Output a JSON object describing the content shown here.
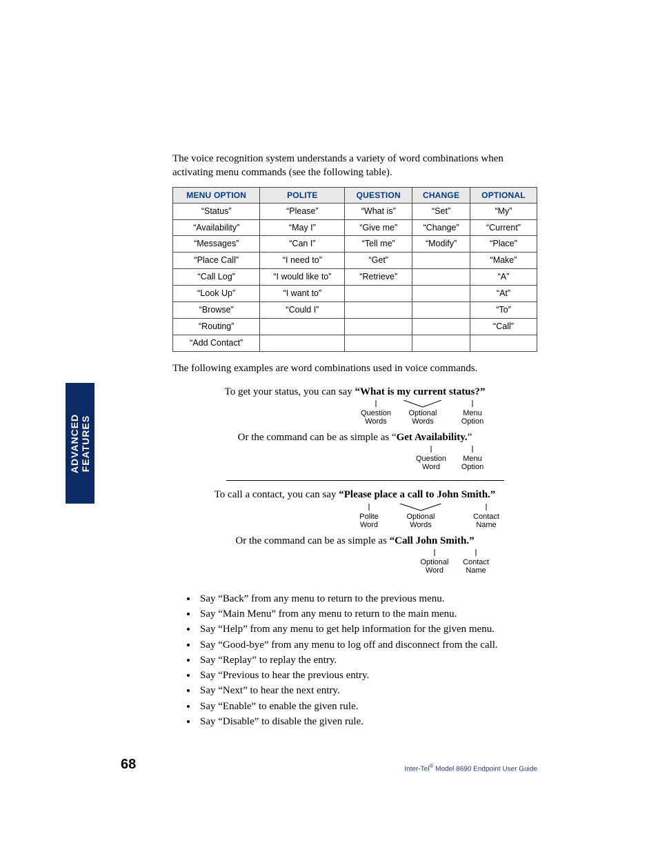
{
  "intro": "The voice recognition system understands a variety of word combinations when activating menu commands (see the following table).",
  "table": {
    "headers": [
      "MENU OPTION",
      "POLITE",
      "QUESTION",
      "CHANGE",
      "OPTIONAL"
    ],
    "rows": [
      [
        "“Status”",
        "“Please”",
        "“What is”",
        "“Set”",
        "“My”"
      ],
      [
        "“Availability”",
        "“May I”",
        "“Give me”",
        "“Change”",
        "“Current”"
      ],
      [
        "“Messages”",
        "“Can I”",
        "“Tell me”",
        "“Modify”",
        "“Place”"
      ],
      [
        "“Place Call”",
        "“I need to”",
        "“Get”",
        "",
        "“Make”"
      ],
      [
        "“Call Log”",
        "“I would like to”",
        "“Retrieve”",
        "",
        "“A”"
      ],
      [
        "“Look Up”",
        "“I want to”",
        "",
        "",
        "“At”"
      ],
      [
        "“Browse”",
        "“Could I”",
        "",
        "",
        "“To”"
      ],
      [
        "“Routing”",
        "",
        "",
        "",
        "“Call”"
      ],
      [
        "“Add Contact”",
        "",
        "",
        "",
        ""
      ]
    ]
  },
  "after_table": "The following examples are word combinations used in voice commands.",
  "examples": {
    "e1_prefix": "To get your status, you can say ",
    "e1_bold": "“What is my current status?”",
    "e1_ann": {
      "a1_l1": "Question",
      "a1_l2": "Words",
      "a2_l1": "Optional",
      "a2_l2": "Words",
      "a3_l1": "Menu",
      "a3_l2": "Option"
    },
    "e2_prefix": "Or the command can be as simple as “",
    "e2_bold": "Get Availability.",
    "e2_suffix": "”",
    "e2_ann": {
      "a1_l1": "Question",
      "a1_l2": "Word",
      "a2_l1": "Menu",
      "a2_l2": "Option"
    },
    "e3_prefix": "To call a contact, you can say ",
    "e3_bold": "“Please place a call to John Smith.”",
    "e3_ann": {
      "a1_l1": "Polite",
      "a1_l2": "Word",
      "a2_l1": "Optional",
      "a2_l2": "Words",
      "a3_l1": "Contact",
      "a3_l2": "Name"
    },
    "e4_prefix": "Or the command can be as simple as ",
    "e4_bold": "“Call John Smith.”",
    "e4_ann": {
      "a1_l1": "Optional",
      "a1_l2": "Word",
      "a2_l1": "Contact",
      "a2_l2": "Name"
    }
  },
  "say_list": [
    "Say “Back” from any menu to return to the previous menu.",
    "Say “Main Menu” from any menu to return to the main menu.",
    "Say “Help” from any menu to get help information for the given menu.",
    "Say “Good-bye” from any menu to log off and disconnect from the call.",
    "Say “Replay” to replay the entry.",
    "Say “Previous to hear the previous entry.",
    "Say “Next” to hear the next entry.",
    "Say “Enable” to enable the given rule.",
    "Say “Disable” to disable the given rule."
  ],
  "sidetab_line1": "ADVANCED",
  "sidetab_line2": "FEATURES",
  "page_number": "68",
  "footer_brand_pre": "Inter-Tel",
  "footer_brand_sup": "®",
  "footer_brand_post": " Model 8690 Endpoint User Guide",
  "colors": {
    "sidetab_bg": "#0b2a66",
    "table_header_bg": "#e9e9e9",
    "table_header_text": "#003a8c",
    "footer_text": "#223a7a"
  }
}
